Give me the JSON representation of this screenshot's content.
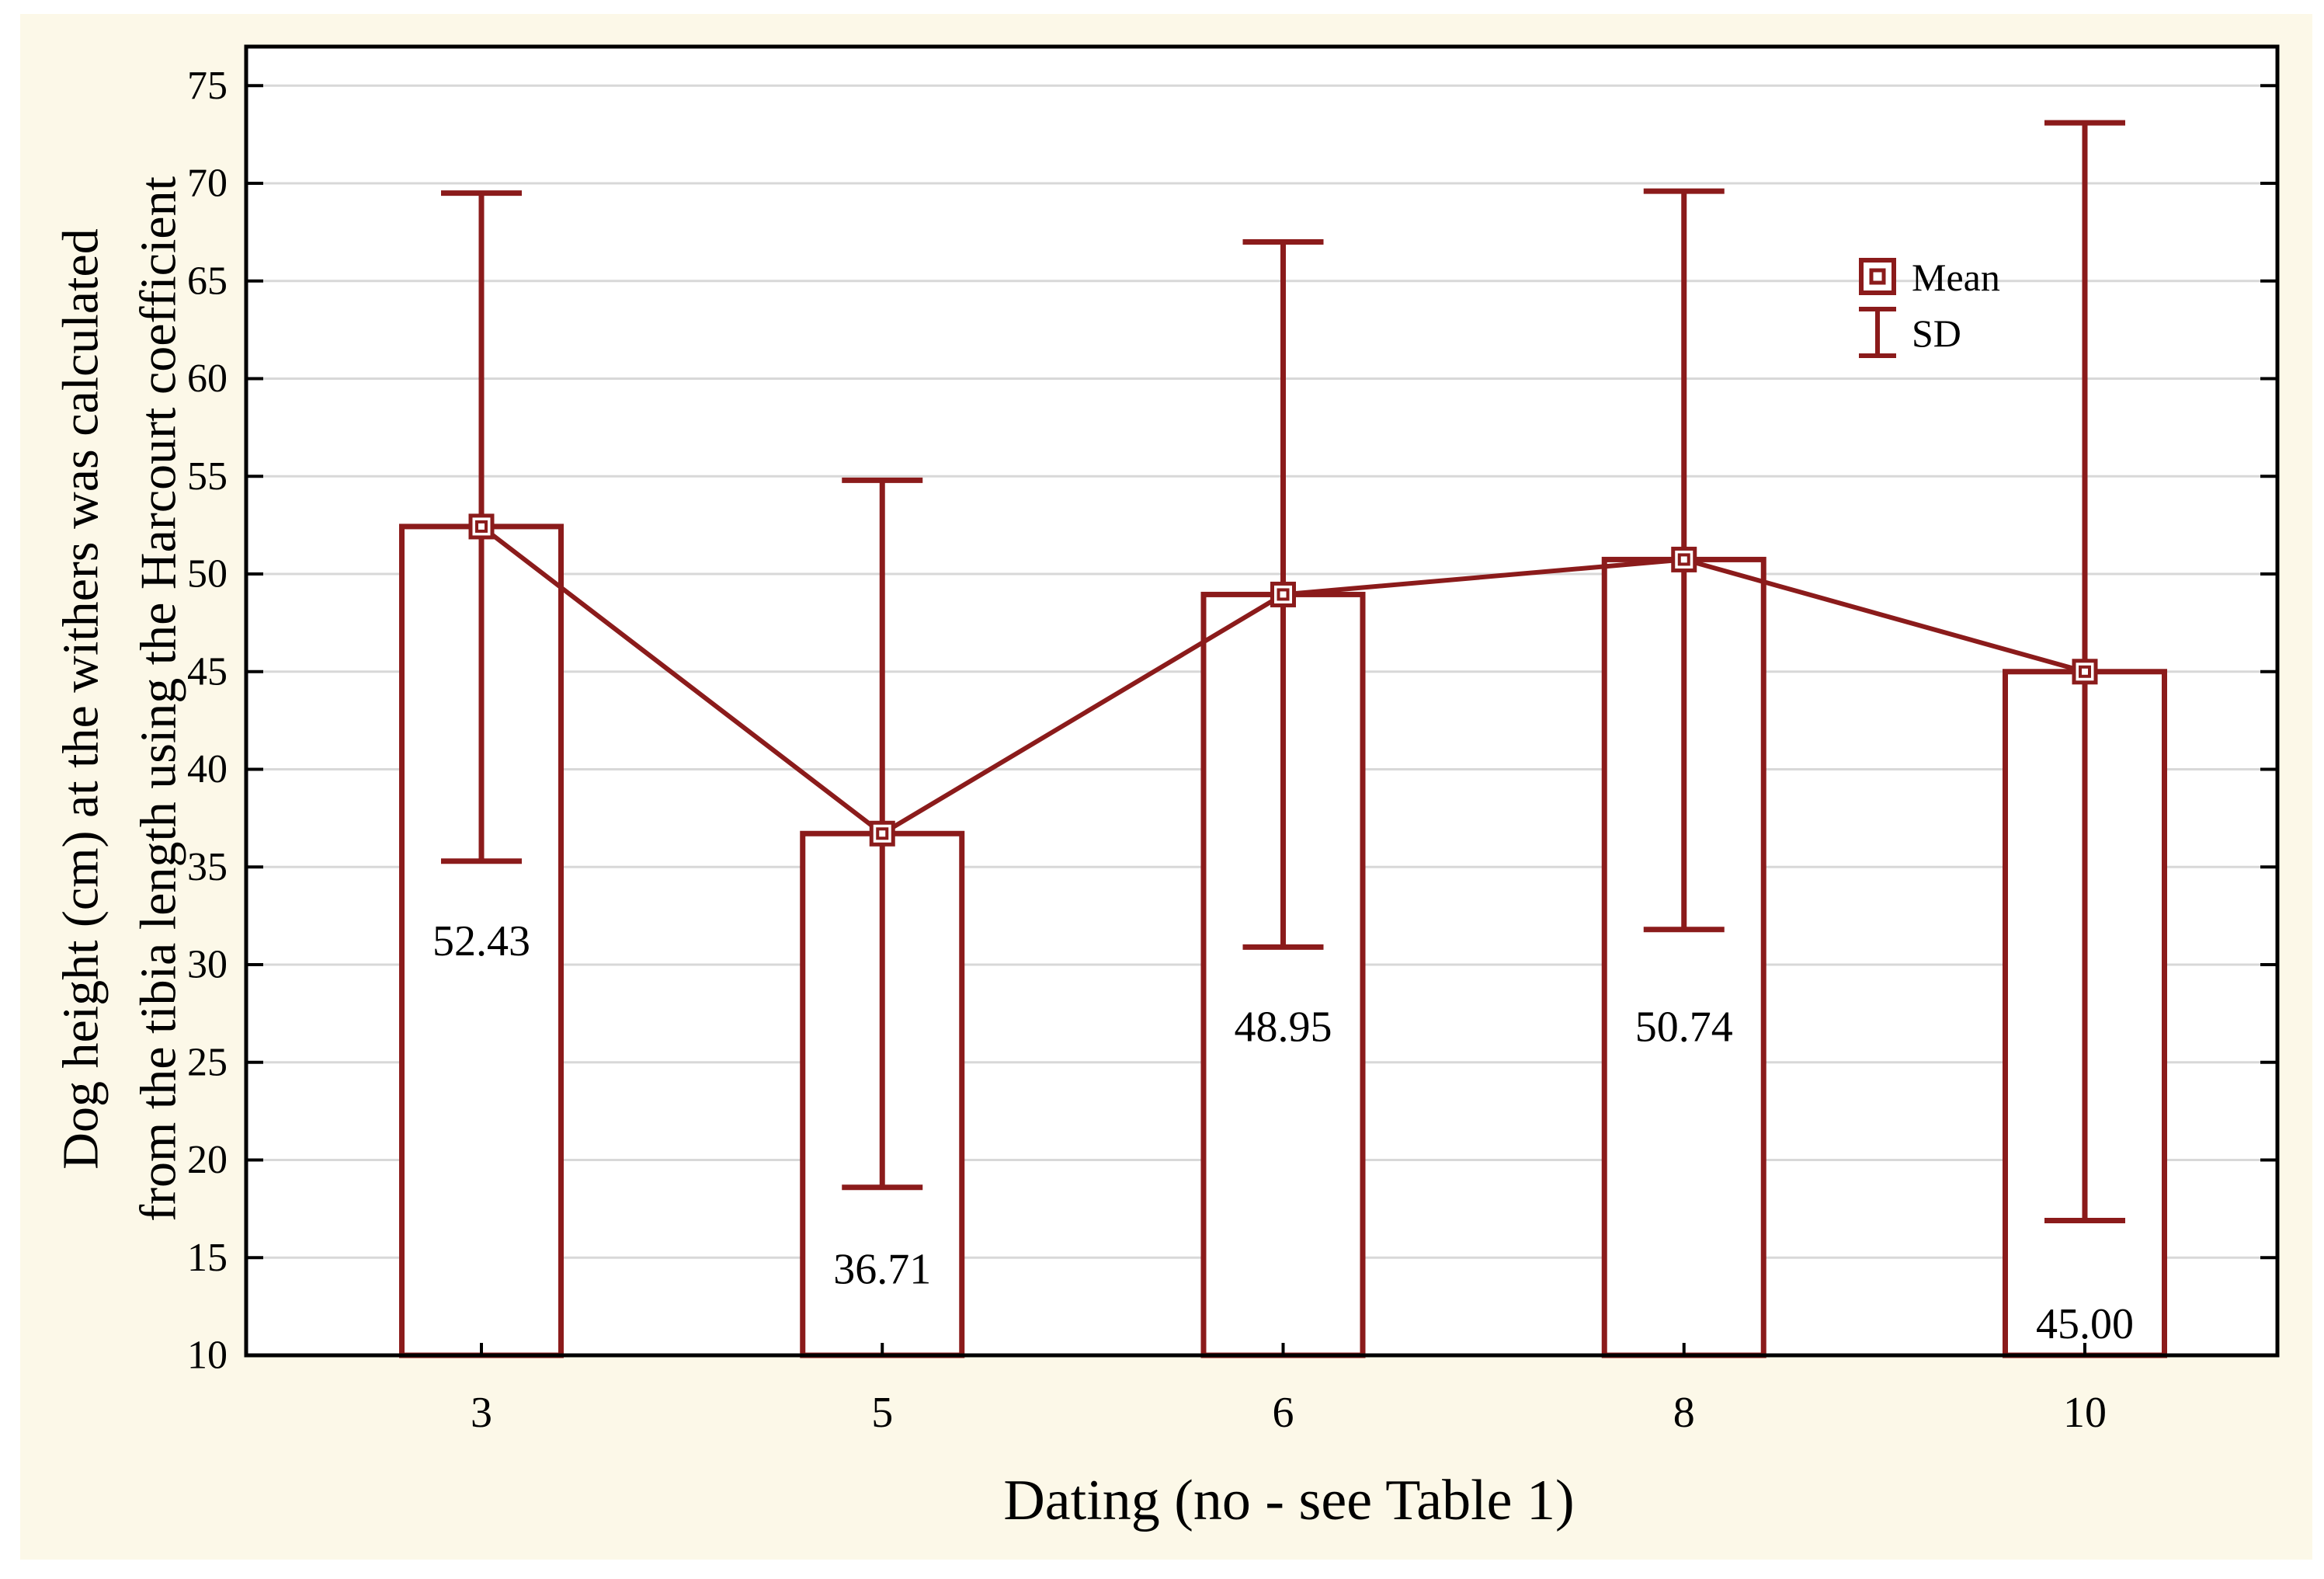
{
  "figure": {
    "page_background": "#FFFFFF",
    "canvas_background": "#FCF8E8",
    "plot_background": "#FFFFFF",
    "accent_color": "#8B1B1B",
    "grid_color": "#D8D8D8",
    "axis_color": "#000000",
    "text_color": "#000000"
  },
  "chart_data": {
    "type": "bar",
    "title": "",
    "xlabel": "Dating (no - see Table 1)",
    "ylabel_lines": [
      "Dog height (cm) at the withers was calculated",
      "from the tibia length using the Harcourt coefficient"
    ],
    "categories": [
      "3",
      "5",
      "6",
      "8",
      "10"
    ],
    "series": [
      {
        "name": "Mean",
        "values": [
          52.43,
          36.71,
          48.95,
          50.74,
          45.0
        ]
      },
      {
        "name": "SD",
        "upper": [
          69.5,
          54.8,
          67.0,
          69.6,
          73.1
        ],
        "lower": [
          35.3,
          18.6,
          30.9,
          31.8,
          16.9
        ]
      }
    ],
    "bar_labels": [
      "52.43",
      "36.71",
      "48.95",
      "50.74",
      "45.00"
    ],
    "bar_label_y": [
      31.2,
      14.4,
      26.8,
      26.8,
      11.6
    ],
    "ylim": [
      10,
      77
    ],
    "yticks": [
      10,
      15,
      20,
      25,
      30,
      35,
      40,
      45,
      50,
      55,
      60,
      65,
      70,
      75
    ],
    "grid": "horizontal",
    "legend": {
      "position": "upper-right",
      "entries": [
        {
          "marker": "square",
          "label": "Mean"
        },
        {
          "marker": "error-bar",
          "label": "SD"
        }
      ]
    }
  }
}
